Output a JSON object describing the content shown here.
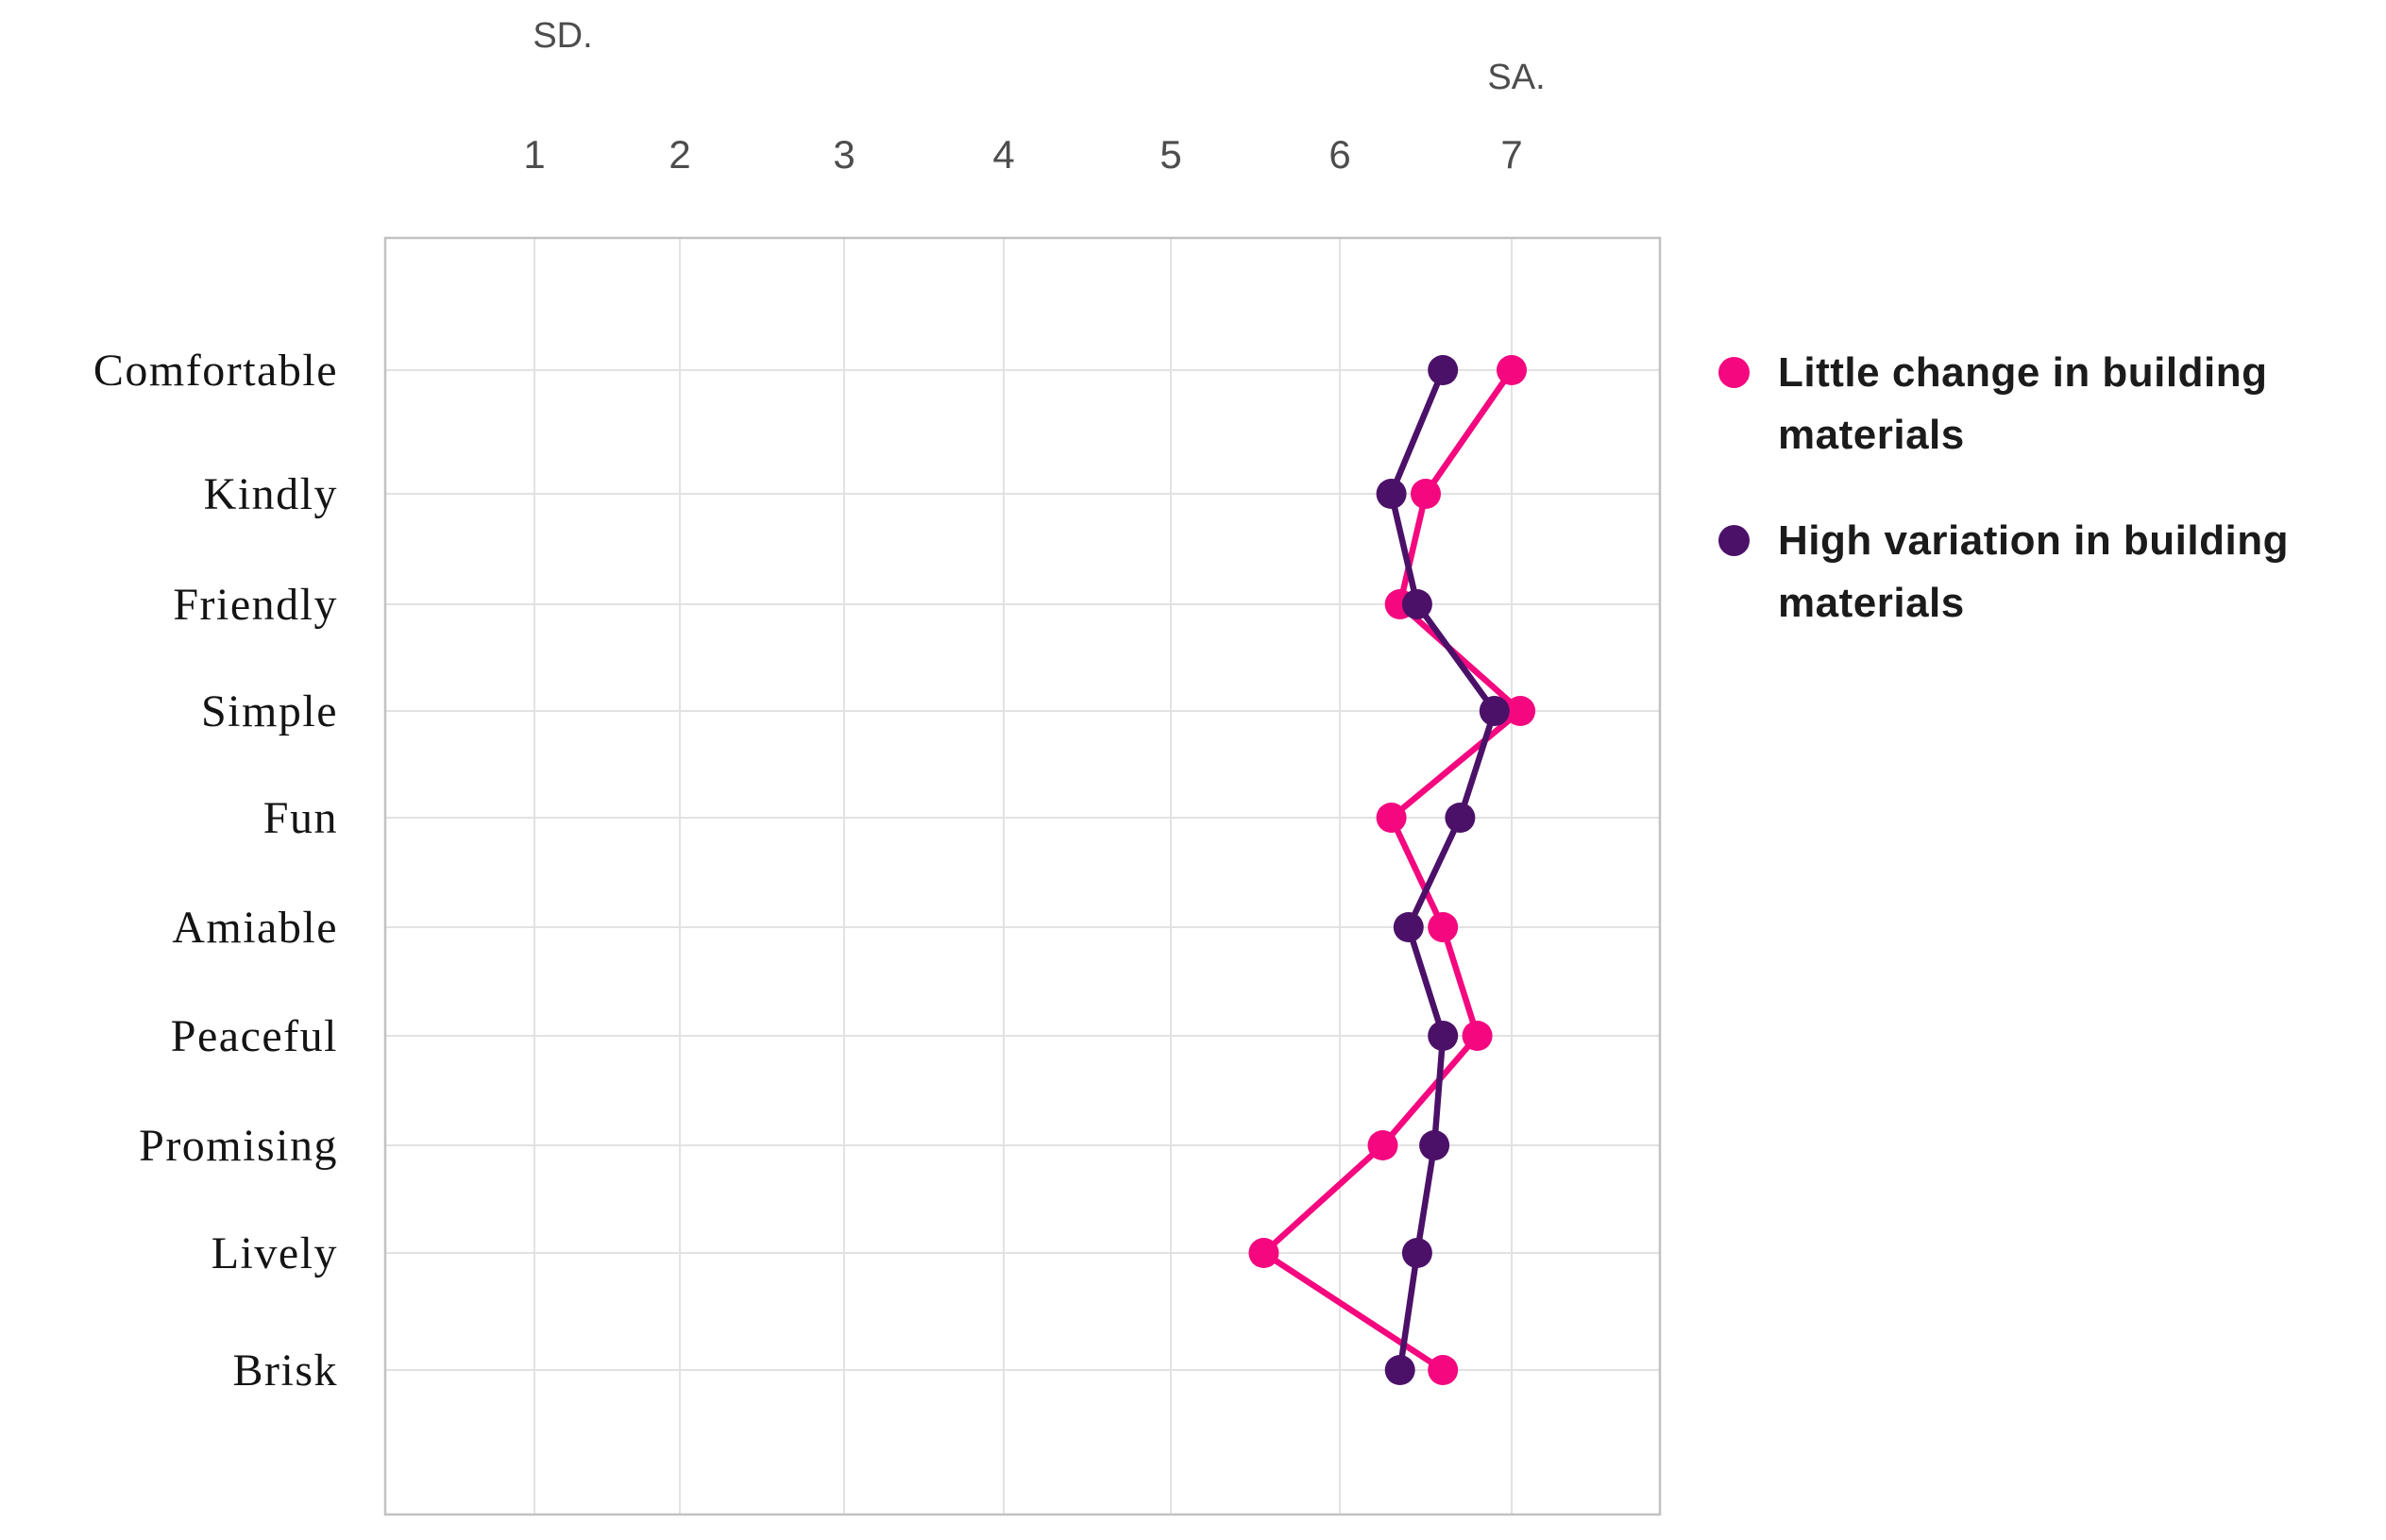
{
  "figure": {
    "background": "#ffffff",
    "grid_color": "#e2e2e2",
    "border_color": "#c2c2c2",
    "tick_color": "#4d4d4d",
    "category_color": "#141414"
  },
  "legend": {
    "items": [
      {
        "label": "Little change in building materials",
        "line1": "Little change in building",
        "line2": "materials",
        "color": "#F4077F"
      },
      {
        "label": "High variation in building materials",
        "line1": "High variation in building",
        "line2": "materials",
        "color": "#4B1168"
      }
    ]
  },
  "chart_data": {
    "type": "line",
    "subtype": "dot-line profile chart, horizontal categories",
    "title": "",
    "xlabel": "",
    "ylabel": "",
    "anchor_label_left": "SD.",
    "anchor_label_right": "SA.",
    "xticks": [
      1,
      2,
      3,
      4,
      5,
      6,
      7
    ],
    "xlim": [
      1,
      7
    ],
    "grid": true,
    "legend_position": "right",
    "categories": [
      "Comfortable",
      "Kindly",
      "Friendly",
      "Simple",
      "Fun",
      "Amiable",
      "Peaceful",
      "Promising",
      "Lively",
      "Brisk"
    ],
    "series": [
      {
        "name": "Little change in building materials",
        "color": "#F4077F",
        "values": [
          7.0,
          6.5,
          6.35,
          7.05,
          6.3,
          6.6,
          6.8,
          6.25,
          5.55,
          6.6
        ]
      },
      {
        "name": "High variation in building materials",
        "color": "#4B1168",
        "values": [
          6.6,
          6.3,
          6.45,
          6.9,
          6.7,
          6.4,
          6.6,
          6.55,
          6.45,
          6.35
        ]
      }
    ]
  }
}
